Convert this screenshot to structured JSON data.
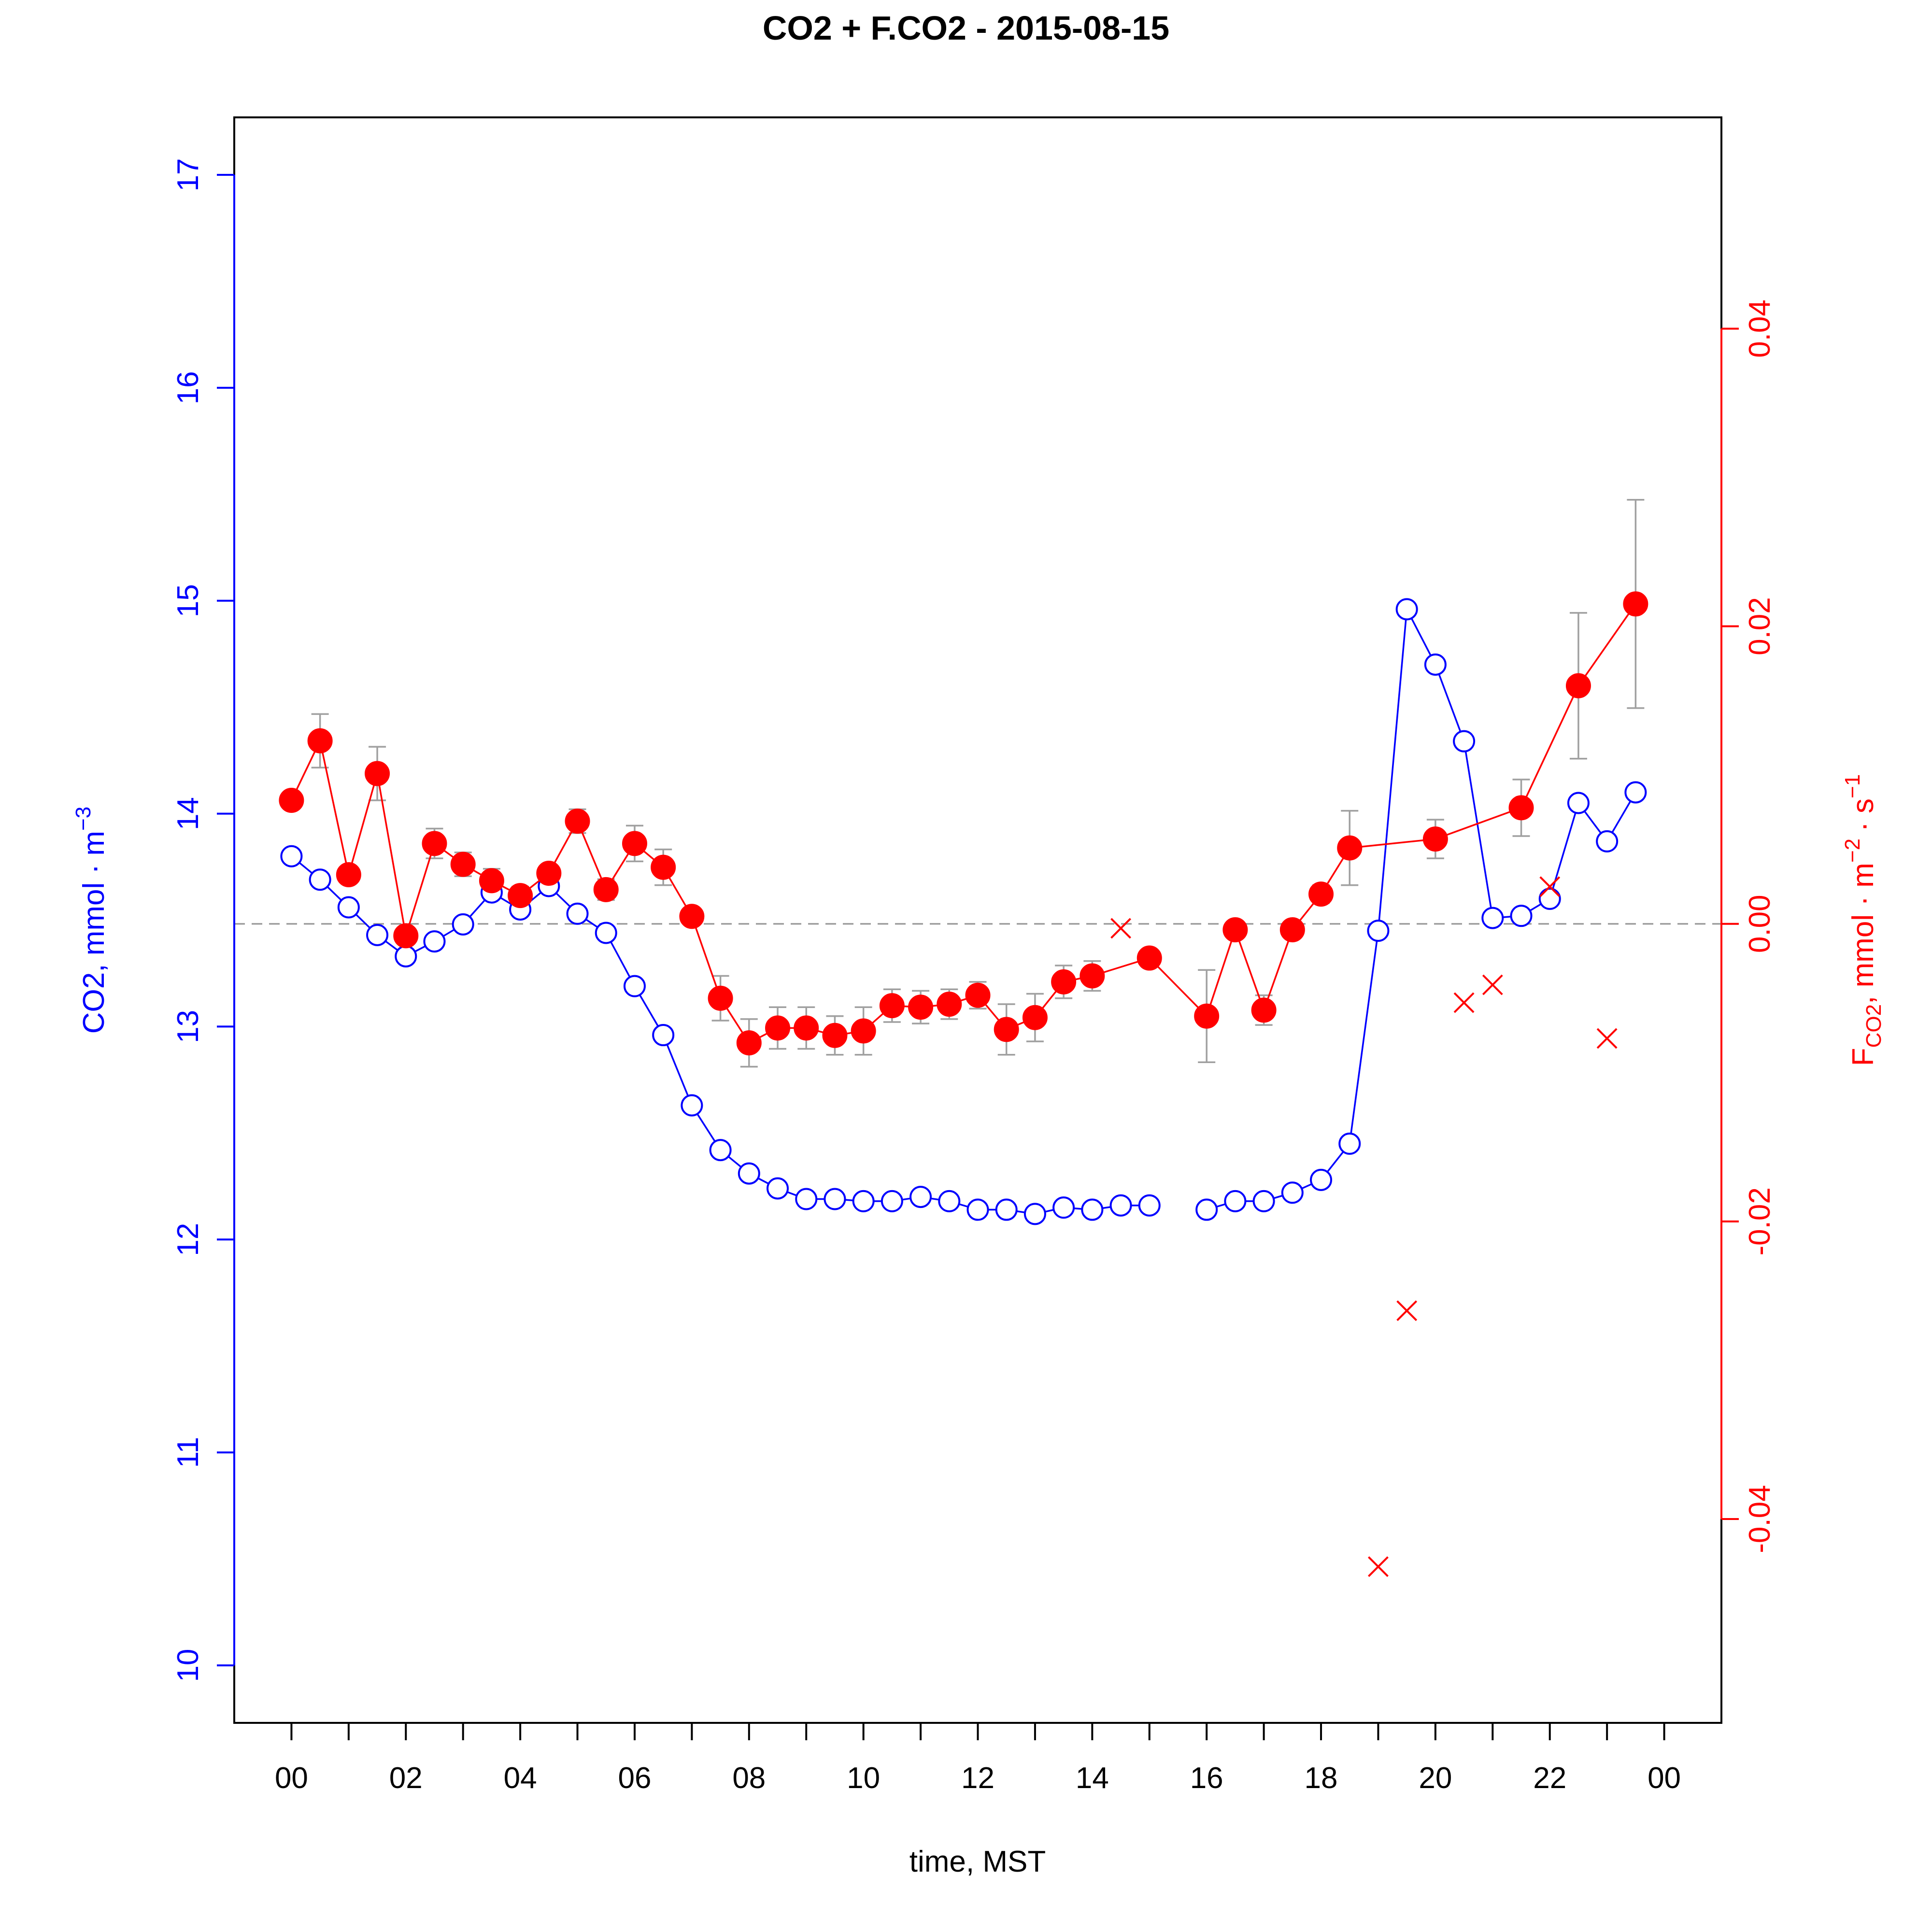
{
  "chart_data": {
    "type": "line",
    "title": "CO2 + F.CO2 -  2015-08-15",
    "xlabel": "time, MST",
    "ylabel_left": {
      "main": "CO2, mmol",
      "dot": "·",
      "unit": "m",
      "sup": "−3"
    },
    "ylabel_right": {
      "F": "F",
      "sub": "CO2",
      "main": ", mmol",
      "dot1": "·",
      "m": "m",
      "sup1": "−2",
      "dot2": "·",
      "s": "s",
      "sup2": "−1"
    },
    "x_ticks": [
      0,
      1,
      2,
      3,
      4,
      5,
      6,
      7,
      8,
      9,
      10,
      11,
      12,
      13,
      14,
      15,
      16,
      17,
      18,
      19,
      20,
      21,
      22,
      23,
      24
    ],
    "x_tick_labels": [
      {
        "x": 0,
        "label": "00"
      },
      {
        "x": 2,
        "label": "02"
      },
      {
        "x": 4,
        "label": "04"
      },
      {
        "x": 6,
        "label": "06"
      },
      {
        "x": 8,
        "label": "08"
      },
      {
        "x": 10,
        "label": "10"
      },
      {
        "x": 12,
        "label": "12"
      },
      {
        "x": 14,
        "label": "14"
      },
      {
        "x": 16,
        "label": "16"
      },
      {
        "x": 18,
        "label": "18"
      },
      {
        "x": 20,
        "label": "20"
      },
      {
        "x": 22,
        "label": "22"
      },
      {
        "x": 24,
        "label": "00"
      }
    ],
    "y_left_ticks": [
      {
        "v": 10,
        "label": "10"
      },
      {
        "v": 11,
        "label": "11"
      },
      {
        "v": 12,
        "label": "12"
      },
      {
        "v": 13,
        "label": "13"
      },
      {
        "v": 14,
        "label": "14"
      },
      {
        "v": 15,
        "label": "15"
      },
      {
        "v": 16,
        "label": "16"
      },
      {
        "v": 17,
        "label": "17"
      }
    ],
    "y_right_ticks": [
      {
        "v": -0.04,
        "label": "-0.04"
      },
      {
        "v": -0.02,
        "label": "-0.02"
      },
      {
        "v": 0.0,
        "label": "0.00"
      },
      {
        "v": 0.02,
        "label": "0.02"
      },
      {
        "v": 0.04,
        "label": "0.04"
      }
    ],
    "xlim": [
      -1,
      25
    ],
    "ylim_left": [
      9.73,
      17.27
    ],
    "ylim_right": [
      -0.0537,
      0.0542
    ],
    "zero_line": 0.0,
    "colors": {
      "co2": "#0000ff",
      "flux": "#ff0000",
      "errorbar": "#a0a0a0",
      "zeroline": "#a0a0a0",
      "axis": "#000000"
    },
    "co2_series": [
      [
        0,
        13.8
      ],
      [
        0.5,
        13.69
      ],
      [
        1,
        13.56
      ],
      [
        1.5,
        13.43
      ],
      [
        2,
        13.33
      ],
      [
        2.5,
        13.4
      ],
      [
        3,
        13.48
      ],
      [
        3.5,
        13.63
      ],
      [
        4,
        13.55
      ],
      [
        4.5,
        13.66
      ],
      [
        5,
        13.53
      ],
      [
        5.5,
        13.44
      ],
      [
        6,
        13.19
      ],
      [
        6.5,
        12.96
      ],
      [
        7,
        12.63
      ],
      [
        7.5,
        12.42
      ],
      [
        8,
        12.31
      ],
      [
        8.5,
        12.24
      ],
      [
        9,
        12.19
      ],
      [
        9.5,
        12.19
      ],
      [
        10,
        12.18
      ],
      [
        10.5,
        12.18
      ],
      [
        11,
        12.2
      ],
      [
        11.5,
        12.18
      ],
      [
        12,
        12.14
      ],
      [
        12.5,
        12.14
      ],
      [
        13,
        12.12
      ],
      [
        13.5,
        12.15
      ],
      [
        14,
        12.14
      ],
      [
        14.5,
        12.16
      ],
      [
        15,
        12.16
      ],
      null,
      [
        16,
        12.14
      ],
      [
        16.5,
        12.18
      ],
      [
        17,
        12.18
      ],
      [
        17.5,
        12.22
      ],
      [
        18,
        12.28
      ],
      [
        18.5,
        12.45
      ],
      [
        19,
        13.45
      ],
      [
        19.5,
        14.96
      ],
      [
        20,
        14.7
      ],
      [
        20.5,
        14.34
      ],
      [
        21,
        13.51
      ],
      [
        21.5,
        13.52
      ],
      [
        22,
        13.6
      ],
      [
        22.5,
        14.05
      ],
      [
        23,
        13.87
      ],
      [
        23.5,
        14.1
      ]
    ],
    "flux_series": [
      {
        "x": 0,
        "y": 0.0083,
        "e": null
      },
      {
        "x": 0.5,
        "y": 0.0123,
        "e": 0.0018
      },
      {
        "x": 1,
        "y": 0.0033,
        "e": null
      },
      {
        "x": 1.5,
        "y": 0.0101,
        "e": 0.0018
      },
      {
        "x": 2,
        "y": -0.0008,
        "e": null
      },
      {
        "x": 2.5,
        "y": 0.0054,
        "e": 0.001
      },
      {
        "x": 3,
        "y": 0.004,
        "e": 0.0008
      },
      {
        "x": 3.5,
        "y": 0.0029,
        "e": 0.0008
      },
      {
        "x": 4,
        "y": 0.0019,
        "e": 0.0006
      },
      {
        "x": 4.5,
        "y": 0.0034,
        "e": 0.0004
      },
      {
        "x": 5,
        "y": 0.0069,
        "e": 0.0008
      },
      {
        "x": 5.5,
        "y": 0.0023,
        "e": 0.0007
      },
      {
        "x": 6,
        "y": 0.0054,
        "e": 0.0012
      },
      {
        "x": 6.5,
        "y": 0.0038,
        "e": 0.0012
      },
      {
        "x": 7,
        "y": 0.0005,
        "e": null
      },
      {
        "x": 7.5,
        "y": -0.005,
        "e": 0.0015
      },
      {
        "x": 8,
        "y": -0.008,
        "e": 0.0016
      },
      {
        "x": 8.5,
        "y": -0.007,
        "e": 0.0014
      },
      {
        "x": 9,
        "y": -0.007,
        "e": 0.0014
      },
      {
        "x": 9.5,
        "y": -0.0075,
        "e": 0.0013
      },
      {
        "x": 10,
        "y": -0.0072,
        "e": 0.0016
      },
      {
        "x": 10.5,
        "y": -0.0055,
        "e": 0.0011
      },
      {
        "x": 11,
        "y": -0.0056,
        "e": 0.0011
      },
      {
        "x": 11.5,
        "y": -0.0054,
        "e": 0.001
      },
      {
        "x": 12,
        "y": -0.0048,
        "e": 0.0009
      },
      {
        "x": 12.5,
        "y": -0.0071,
        "e": 0.0017
      },
      {
        "x": 13,
        "y": -0.0063,
        "e": 0.0016
      },
      {
        "x": 13.5,
        "y": -0.0039,
        "e": 0.0011
      },
      {
        "x": 14,
        "y": -0.0035,
        "e": 0.001
      },
      {
        "x": 15,
        "y": -0.0023,
        "e": null
      },
      {
        "x": 16,
        "y": -0.0062,
        "e": 0.0031
      },
      {
        "x": 16.5,
        "y": -0.0004,
        "e": null
      },
      {
        "x": 17,
        "y": -0.0058,
        "e": 0.001
      },
      {
        "x": 17.5,
        "y": -0.0004,
        "e": null
      },
      {
        "x": 18,
        "y": 0.002,
        "e": 0.0006
      },
      {
        "x": 18.5,
        "y": 0.0051,
        "e": 0.0025
      },
      {
        "x": 20,
        "y": 0.0057,
        "e": 0.0013
      },
      {
        "x": 21.5,
        "y": 0.0078,
        "e": 0.0019
      },
      {
        "x": 22.5,
        "y": 0.016,
        "e": 0.0049
      },
      {
        "x": 23.5,
        "y": 0.0215,
        "e": 0.007
      }
    ],
    "flux_excluded": [
      {
        "x": 14.5,
        "y": -0.0003
      },
      {
        "x": 19,
        "y": -0.0432
      },
      {
        "x": 19.5,
        "y": -0.026
      },
      {
        "x": 20.5,
        "y": -0.0053
      },
      {
        "x": 21,
        "y": -0.0041
      },
      {
        "x": 22,
        "y": 0.0025
      },
      {
        "x": 23,
        "y": -0.0077
      }
    ]
  }
}
